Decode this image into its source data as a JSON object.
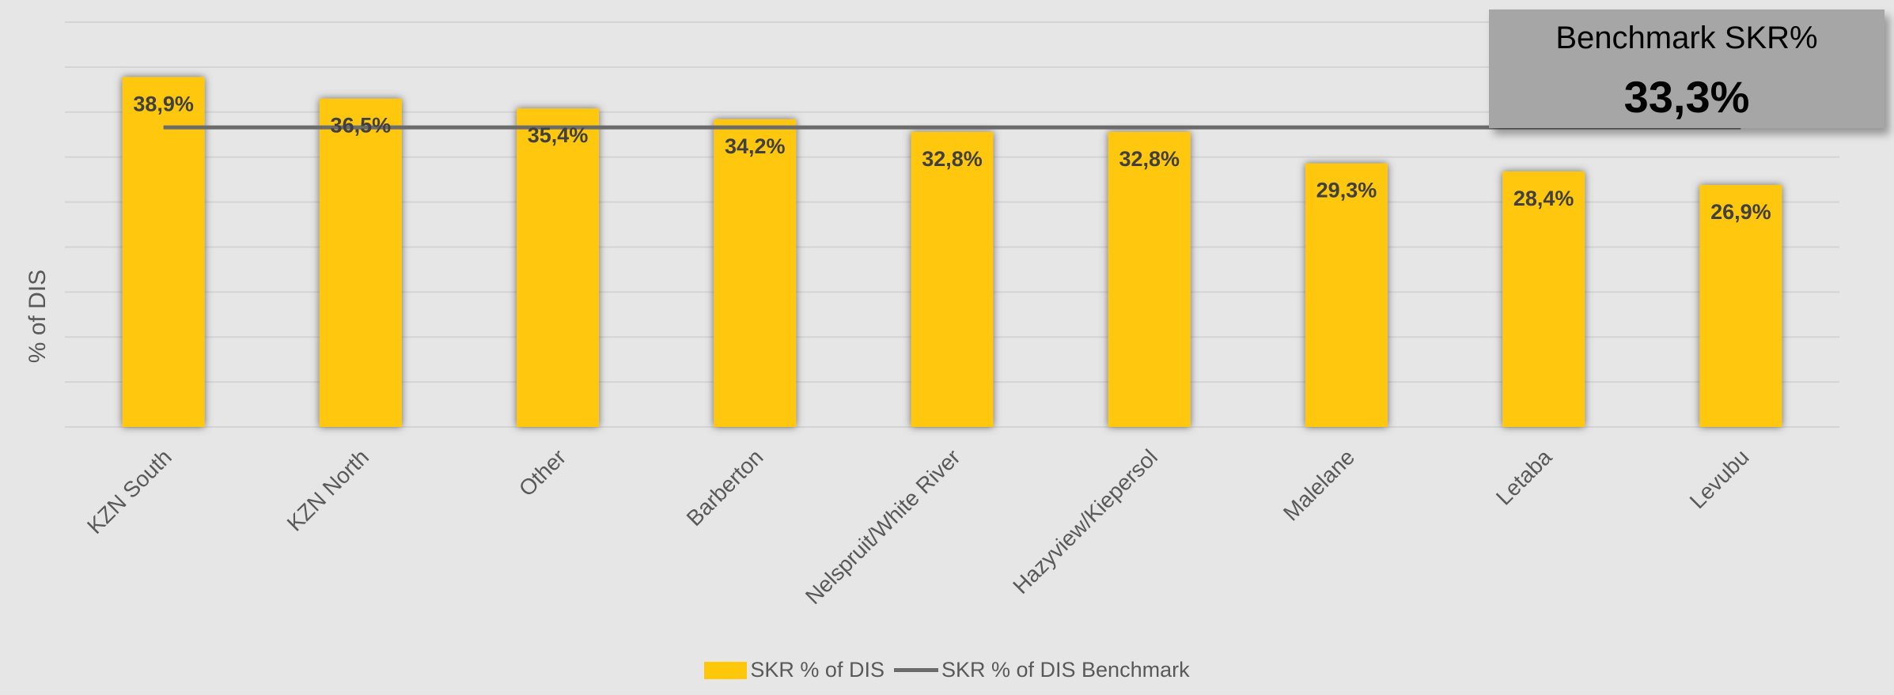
{
  "chart_data": {
    "type": "bar",
    "categories": [
      "KZN South",
      "KZN North",
      "Other",
      "Barberton",
      "Nelspruit/White River",
      "Hazyview/Kiepersol",
      "Malelane",
      "Letaba",
      "Levubu"
    ],
    "series": [
      {
        "name": "SKR % of DIS",
        "type": "bar",
        "color": "#ffc709",
        "values": [
          38.9,
          36.5,
          35.4,
          34.2,
          32.8,
          32.8,
          29.3,
          28.4,
          26.9
        ],
        "labels": [
          "38,9%",
          "36,5%",
          "35,4%",
          "34,2%",
          "32,8%",
          "32,8%",
          "29,3%",
          "28,4%",
          "26,9%"
        ]
      },
      {
        "name": "SKR % of DIS Benchmark",
        "type": "line",
        "color": "#6b6b6b",
        "values": [
          33.3,
          33.3,
          33.3,
          33.3,
          33.3,
          33.3,
          33.3,
          33.3,
          33.3
        ]
      }
    ],
    "ylabel": "% of DIS",
    "xlabel": "",
    "ylim": [
      0,
      45
    ],
    "grid": true,
    "legend_position": "bottom"
  },
  "benchmark_box": {
    "title": "Benchmark SKR%",
    "value": "33,3%"
  },
  "legend": {
    "bar_label": "SKR % of DIS",
    "line_label": "SKR % of DIS Benchmark"
  }
}
